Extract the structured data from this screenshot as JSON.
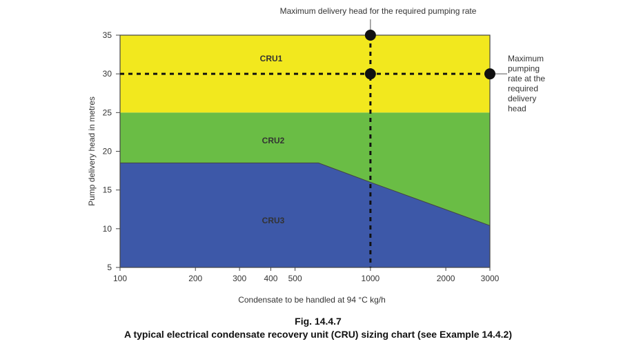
{
  "chart_data": {
    "type": "area",
    "xlabel": "Condensate to be handled at 94 °C kg/h",
    "ylabel": "Pump delivery head in metres",
    "xscale": "log",
    "xlim": [
      100,
      3000
    ],
    "ylim": [
      5,
      35
    ],
    "xticks": [
      100,
      200,
      300,
      400,
      500,
      1000,
      2000,
      3000
    ],
    "yticks": [
      5,
      10,
      15,
      20,
      25,
      30,
      35
    ],
    "regions": [
      {
        "name": "CRU1",
        "color": "#f2e81e",
        "lower": [
          [
            100,
            25
          ],
          [
            3000,
            25
          ]
        ],
        "upper": 35
      },
      {
        "name": "CRU2",
        "color": "#6abd45",
        "lower": [
          [
            100,
            18.5
          ],
          [
            620,
            18.5
          ],
          [
            1000,
            16
          ],
          [
            3000,
            10.4
          ]
        ],
        "upper": 25
      },
      {
        "name": "CRU3",
        "color": "#3d58a8",
        "lower": 5,
        "upper": [
          [
            100,
            18.5
          ],
          [
            620,
            18.5
          ],
          [
            1000,
            16
          ],
          [
            3000,
            10.4
          ]
        ]
      }
    ],
    "reference_lines": {
      "x": 1000,
      "y": 30
    },
    "points": [
      {
        "x": 1000,
        "y": 35
      },
      {
        "x": 1000,
        "y": 30
      },
      {
        "x": 3000,
        "y": 30
      }
    ],
    "annotations": [
      {
        "text": "Maximum delivery head for the required pumping rate"
      },
      {
        "text": [
          "Maximum",
          "pumping",
          "rate at the",
          "required",
          "delivery",
          "head"
        ]
      }
    ]
  },
  "caption": {
    "fig": "Fig. 14.4.7",
    "title": "A typical electrical condensate recovery unit (CRU) sizing chart (see Example 14.4.2)"
  }
}
